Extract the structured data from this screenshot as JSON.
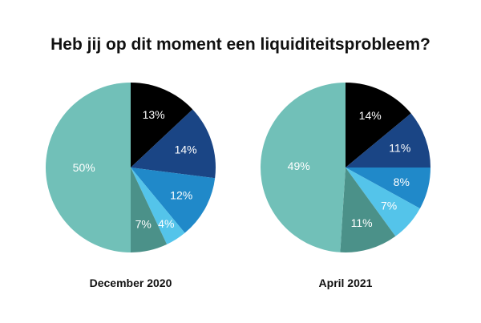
{
  "title": "Heb jij op dit moment een liquiditeitsprobleem?",
  "chart_data": [
    {
      "type": "pie",
      "label": "December 2020",
      "slices": [
        {
          "value": 13,
          "label": "13%",
          "color": "#000000"
        },
        {
          "value": 14,
          "label": "14%",
          "color": "#1a4585"
        },
        {
          "value": 12,
          "label": "12%",
          "color": "#2089c9"
        },
        {
          "value": 4,
          "label": "4%",
          "color": "#54c4ea"
        },
        {
          "value": 7,
          "label": "7%",
          "color": "#4b9189"
        },
        {
          "value": 50,
          "label": "50%",
          "color": "#71c0b8"
        }
      ]
    },
    {
      "type": "pie",
      "label": "April 2021",
      "slices": [
        {
          "value": 14,
          "label": "14%",
          "color": "#000000"
        },
        {
          "value": 11,
          "label": "11%",
          "color": "#1a4585"
        },
        {
          "value": 8,
          "label": "8%",
          "color": "#2089c9"
        },
        {
          "value": 7,
          "label": "7%",
          "color": "#54c4ea"
        },
        {
          "value": 11,
          "label": "11%",
          "color": "#4b9189"
        },
        {
          "value": 49,
          "label": "49%",
          "color": "#71c0b8"
        }
      ]
    }
  ]
}
